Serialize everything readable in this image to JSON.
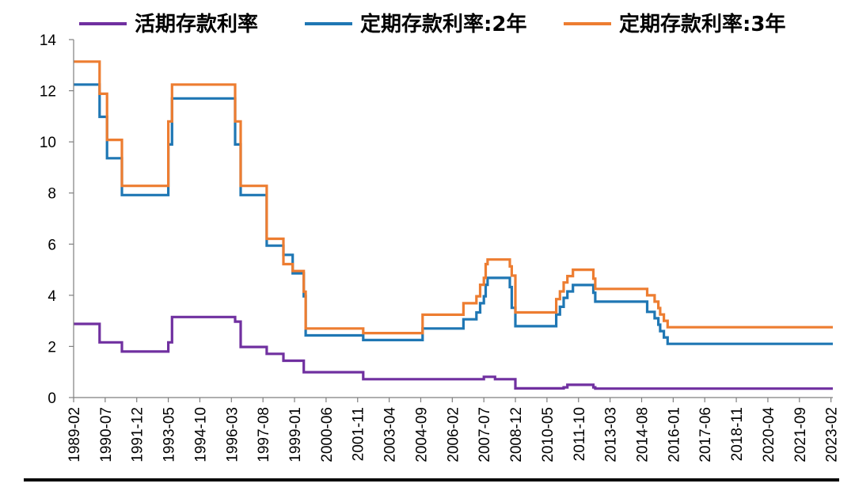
{
  "chart_data": {
    "type": "line",
    "title": "",
    "xlabel": "",
    "ylabel": "",
    "ylim": [
      0,
      14
    ],
    "yticks": [
      "0",
      "2",
      "4",
      "6",
      "8",
      "10",
      "12",
      "14"
    ],
    "xticks": [
      "1989-02",
      "1990-07",
      "1991-12",
      "1993-05",
      "1994-10",
      "1996-03",
      "1997-08",
      "1999-01",
      "2000-06",
      "2001-11",
      "2003-04",
      "2004-09",
      "2006-02",
      "2007-07",
      "2008-12",
      "2010-05",
      "2011-10",
      "2013-03",
      "2014-08",
      "2016-01",
      "2017-06",
      "2018-11",
      "2020-04",
      "2021-09",
      "2023-02"
    ],
    "x_range": [
      "1989-02",
      "2023-03"
    ],
    "grid": false,
    "legend_position": "top",
    "series": [
      {
        "name": "活期存款利率",
        "color": "#7030A0",
        "step": true,
        "points": [
          [
            "1989-02",
            2.88
          ],
          [
            "1990-04",
            2.16
          ],
          [
            "1990-08",
            2.16
          ],
          [
            "1991-04",
            1.8
          ],
          [
            "1993-05",
            2.16
          ],
          [
            "1993-07",
            3.15
          ],
          [
            "1996-05",
            2.97
          ],
          [
            "1996-08",
            1.98
          ],
          [
            "1997-10",
            1.71
          ],
          [
            "1998-03",
            1.71
          ],
          [
            "1998-07",
            1.44
          ],
          [
            "1998-12",
            1.44
          ],
          [
            "1999-06",
            0.99
          ],
          [
            "2002-02",
            0.72
          ],
          [
            "2007-07",
            0.81
          ],
          [
            "2008-01",
            0.72
          ],
          [
            "2008-11",
            0.72
          ],
          [
            "2008-12",
            0.36
          ],
          [
            "2011-01",
            0.36
          ],
          [
            "2011-02",
            0.4
          ],
          [
            "2011-04",
            0.5
          ],
          [
            "2012-06",
            0.4
          ],
          [
            "2012-07",
            0.35
          ],
          [
            "2023-03",
            0.35
          ]
        ]
      },
      {
        "name": "定期存款利率:2年",
        "color": "#1F77B4",
        "step": true,
        "points": [
          [
            "1989-02",
            12.24
          ],
          [
            "1990-04",
            10.98
          ],
          [
            "1990-08",
            9.36
          ],
          [
            "1991-04",
            7.92
          ],
          [
            "1993-05",
            9.9
          ],
          [
            "1993-07",
            11.7
          ],
          [
            "1996-05",
            9.9
          ],
          [
            "1996-08",
            7.92
          ],
          [
            "1997-10",
            5.94
          ],
          [
            "1998-03",
            5.94
          ],
          [
            "1998-07",
            5.58
          ],
          [
            "1998-12",
            4.86
          ],
          [
            "1999-06",
            3.96
          ],
          [
            "1999-07",
            2.43
          ],
          [
            "2002-02",
            2.25
          ],
          [
            "2004-10",
            2.7
          ],
          [
            "2006-08",
            3.06
          ],
          [
            "2007-03",
            3.33
          ],
          [
            "2007-05",
            3.69
          ],
          [
            "2007-07",
            3.96
          ],
          [
            "2007-08",
            4.41
          ],
          [
            "2007-09",
            4.68
          ],
          [
            "2008-09",
            4.32
          ],
          [
            "2008-10",
            3.51
          ],
          [
            "2008-11",
            3.51
          ],
          [
            "2008-12",
            2.79
          ],
          [
            "2010-10",
            3.25
          ],
          [
            "2010-12",
            3.55
          ],
          [
            "2011-02",
            3.9
          ],
          [
            "2011-04",
            4.15
          ],
          [
            "2011-07",
            4.4
          ],
          [
            "2012-06",
            4.1
          ],
          [
            "2012-07",
            3.75
          ],
          [
            "2014-11",
            3.35
          ],
          [
            "2015-03",
            3.1
          ],
          [
            "2015-05",
            2.85
          ],
          [
            "2015-06",
            2.6
          ],
          [
            "2015-08",
            2.35
          ],
          [
            "2015-10",
            2.1
          ],
          [
            "2023-03",
            2.1
          ]
        ]
      },
      {
        "name": "定期存款利率:3年",
        "color": "#ED7D31",
        "step": true,
        "points": [
          [
            "1989-02",
            13.14
          ],
          [
            "1990-04",
            11.88
          ],
          [
            "1990-08",
            10.08
          ],
          [
            "1991-04",
            8.28
          ],
          [
            "1993-05",
            10.8
          ],
          [
            "1993-07",
            12.24
          ],
          [
            "1996-05",
            10.8
          ],
          [
            "1996-08",
            8.28
          ],
          [
            "1997-10",
            6.21
          ],
          [
            "1998-03",
            6.21
          ],
          [
            "1998-07",
            5.22
          ],
          [
            "1998-12",
            4.95
          ],
          [
            "1999-06",
            4.14
          ],
          [
            "1999-07",
            2.7
          ],
          [
            "2002-02",
            2.52
          ],
          [
            "2004-10",
            3.24
          ],
          [
            "2006-08",
            3.69
          ],
          [
            "2007-03",
            3.96
          ],
          [
            "2007-05",
            4.41
          ],
          [
            "2007-07",
            4.68
          ],
          [
            "2007-08",
            5.22
          ],
          [
            "2007-09",
            5.4
          ],
          [
            "2008-09",
            5.13
          ],
          [
            "2008-10",
            4.77
          ],
          [
            "2008-11",
            4.77
          ],
          [
            "2008-12",
            3.33
          ],
          [
            "2010-10",
            3.85
          ],
          [
            "2010-12",
            4.15
          ],
          [
            "2011-02",
            4.5
          ],
          [
            "2011-04",
            4.75
          ],
          [
            "2011-07",
            5.0
          ],
          [
            "2012-06",
            4.65
          ],
          [
            "2012-07",
            4.25
          ],
          [
            "2014-11",
            4.0
          ],
          [
            "2015-03",
            3.75
          ],
          [
            "2015-05",
            3.5
          ],
          [
            "2015-06",
            3.25
          ],
          [
            "2015-08",
            3.0
          ],
          [
            "2015-10",
            2.75
          ],
          [
            "2023-03",
            2.75
          ]
        ]
      }
    ]
  }
}
